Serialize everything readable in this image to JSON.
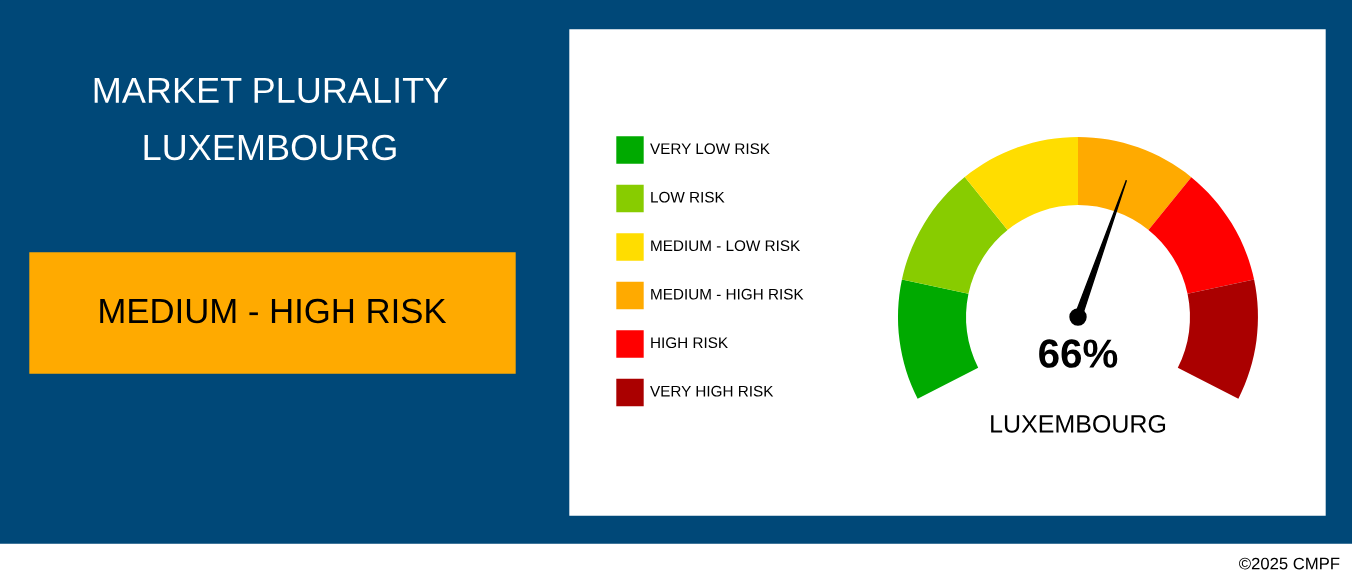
{
  "chart_data": {
    "type": "donut",
    "title": "MARKET PLURALITY\nLUXEMBOURG",
    "categories": [
      "VERY LOW RISK",
      "LOW RISK",
      "MEDIUM - LOW RISK",
      "MEDIUM - HIGH RISK",
      "HIGH RISK",
      "VERY HIGH RISK"
    ],
    "values": [
      16.67,
      16.67,
      16.66,
      16.67,
      16.67,
      16.66
    ],
    "colors": [
      "#00aa00",
      "#88cc00",
      "#ffdd00",
      "#ffaa00",
      "#ff0000",
      "#aa0000"
    ],
    "needle": "MEDIUM - HIGH RISK",
    "legend": "left",
    "annotations": [
      "MEDIUM - HIGH RISK",
      "66%",
      "LUXEMBOURG",
      "©2025 CMPF"
    ]
  }
}
